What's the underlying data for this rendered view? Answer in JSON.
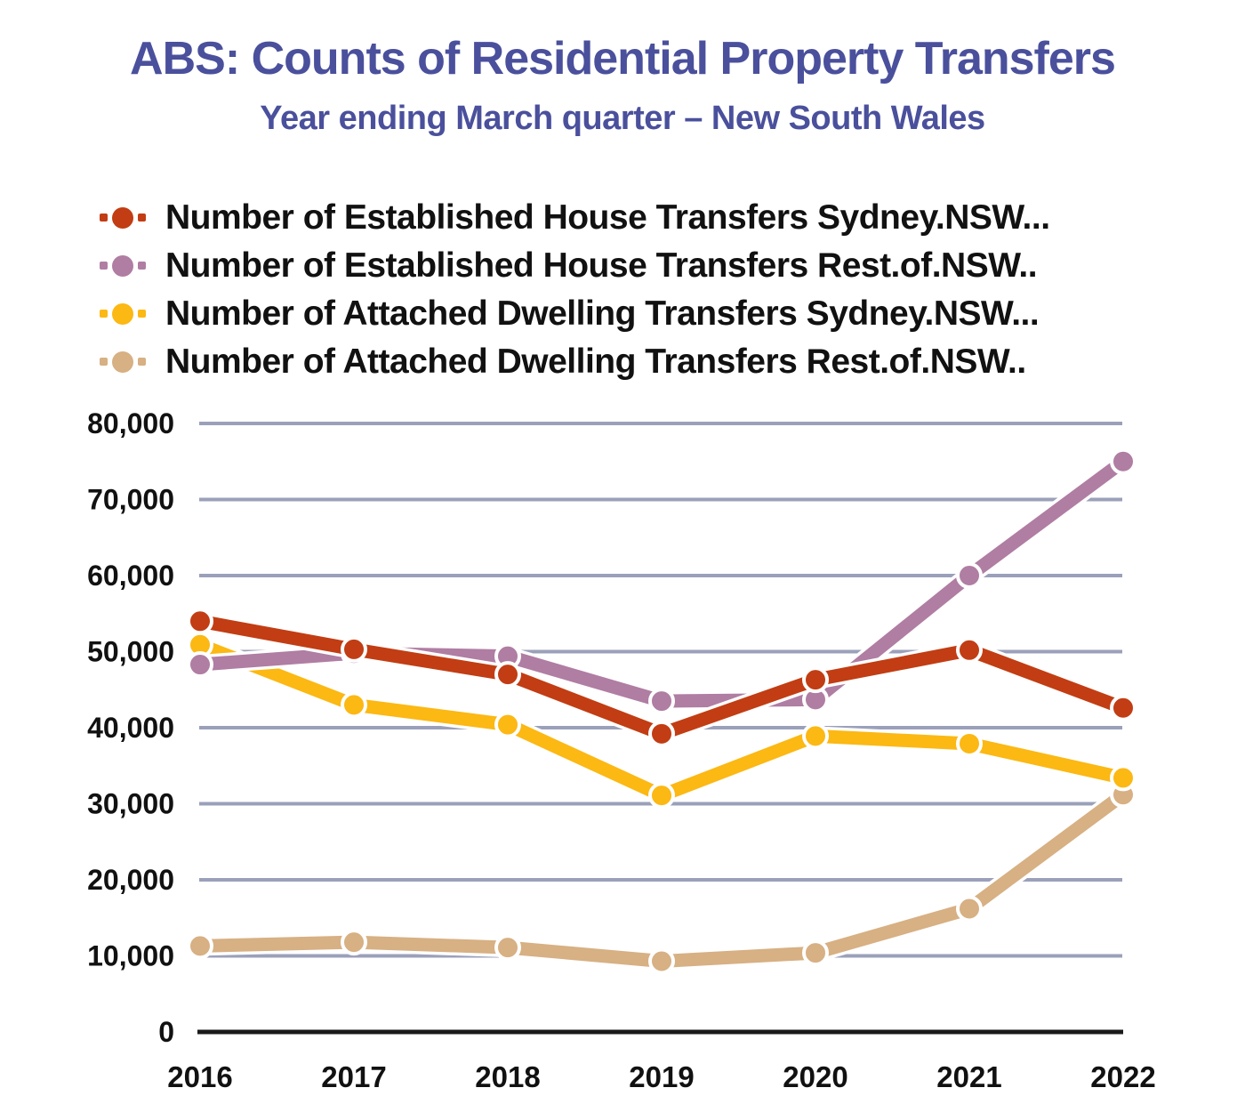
{
  "title": "ABS: Counts of Residential Property Transfers",
  "subtitle": "Year ending March quarter – New South Wales",
  "colors": {
    "title_text": "#4a509c",
    "legend_text": "#111111",
    "gridline": "#9ba0ba",
    "axis_line": "#1a1a1a",
    "tick_text": "#111111",
    "background": "#ffffff"
  },
  "chart_data": {
    "type": "line",
    "x": [
      2016,
      2017,
      2018,
      2019,
      2020,
      2021,
      2022
    ],
    "x_tick_labels": [
      "2016",
      "2017",
      "2018",
      "2019",
      "2020",
      "2021",
      "2022"
    ],
    "series": [
      {
        "name": "Number of Established House Transfers Sydney.NSW...",
        "color": "#c23d13",
        "values": [
          54000,
          50300,
          47000,
          39200,
          46300,
          50200,
          42600
        ]
      },
      {
        "name": "Number of Established House Transfers Rest.of.NSW..",
        "color": "#b07da3",
        "values": [
          48300,
          49800,
          49400,
          43500,
          43700,
          60000,
          75000
        ]
      },
      {
        "name": "Number of Attached Dwelling Transfers Sydney.NSW...",
        "color": "#fcb813",
        "values": [
          50900,
          43000,
          40400,
          31100,
          38900,
          37900,
          33400
        ]
      },
      {
        "name": "Number of Attached Dwelling Transfers Rest.of.NSW..",
        "color": "#d7b083",
        "values": [
          11300,
          11800,
          11100,
          9300,
          10400,
          16200,
          31200
        ]
      }
    ],
    "ylim": [
      0,
      80000
    ],
    "y_ticks": [
      0,
      10000,
      20000,
      30000,
      40000,
      50000,
      60000,
      70000,
      80000
    ],
    "y_tick_labels": [
      "0",
      "10,000",
      "20,000",
      "30,000",
      "40,000",
      "50,000",
      "60,000",
      "70,000",
      "80,000"
    ],
    "grid": true,
    "legend_position": "top-left",
    "marker_style": "dash-dot-dash"
  }
}
